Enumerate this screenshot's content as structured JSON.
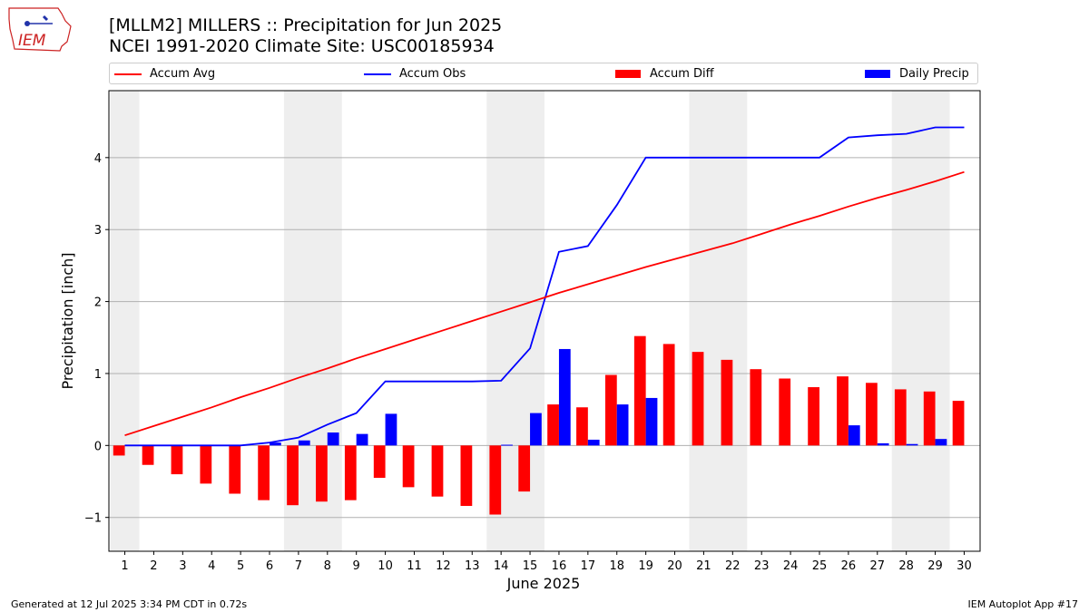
{
  "logo": {
    "text": "IEM"
  },
  "chart_data": {
    "type": "bar",
    "title": "[MLLM2] MILLERS :: Precipitation for Jun 2025",
    "subtitle": "NCEI 1991-2020 Climate Site: USC00185934",
    "xlabel": "June 2025",
    "ylabel": "Precipitation [inch]",
    "ylim": [
      -1.47,
      4.93
    ],
    "yticks": [
      -1,
      0,
      1,
      2,
      3,
      4
    ],
    "ytick_labels": [
      "−1",
      "0",
      "1",
      "2",
      "3",
      "4"
    ],
    "x": [
      1,
      2,
      3,
      4,
      5,
      6,
      7,
      8,
      9,
      10,
      11,
      12,
      13,
      14,
      15,
      16,
      17,
      18,
      19,
      20,
      21,
      22,
      23,
      24,
      25,
      26,
      27,
      28,
      29,
      30
    ],
    "weekend_shading": [
      [
        0.5,
        1.5
      ],
      [
        6.5,
        8.5
      ],
      [
        13.5,
        15.5
      ],
      [
        20.5,
        22.5
      ],
      [
        27.5,
        29.5
      ]
    ],
    "grid": "horizontal",
    "legend_placement": "top",
    "series": [
      {
        "name": "Accum Avg",
        "kind": "line",
        "color": "#ff0000",
        "values": [
          0.14,
          0.27,
          0.4,
          0.53,
          0.67,
          0.8,
          0.94,
          1.07,
          1.21,
          1.34,
          1.47,
          1.6,
          1.73,
          1.86,
          1.99,
          2.12,
          2.24,
          2.36,
          2.48,
          2.59,
          2.7,
          2.81,
          2.94,
          3.07,
          3.19,
          3.32,
          3.44,
          3.55,
          3.67,
          3.8
        ]
      },
      {
        "name": "Accum Obs",
        "kind": "line",
        "color": "#0000ff",
        "values": [
          0,
          0,
          0,
          0,
          0,
          0.04,
          0.11,
          0.29,
          0.45,
          0.89,
          0.89,
          0.89,
          0.89,
          0.9,
          1.35,
          2.69,
          2.77,
          3.34,
          4.0,
          4.0,
          4.0,
          4.0,
          4.0,
          4.0,
          4.0,
          4.28,
          4.31,
          4.33,
          4.42,
          4.42
        ]
      },
      {
        "name": "Accum Diff",
        "kind": "bar",
        "color": "#ff0000",
        "values": [
          -0.14,
          -0.27,
          -0.4,
          -0.53,
          -0.67,
          -0.76,
          -0.83,
          -0.78,
          -0.76,
          -0.45,
          -0.58,
          -0.71,
          -0.84,
          -0.96,
          -0.64,
          0.57,
          0.53,
          0.98,
          1.52,
          1.41,
          1.3,
          1.19,
          1.06,
          0.93,
          0.81,
          0.96,
          0.87,
          0.78,
          0.75,
          0.62
        ]
      },
      {
        "name": "Daily Precip",
        "kind": "bar",
        "color": "#0000ff",
        "values": [
          0,
          0,
          0,
          0,
          0,
          0.04,
          0.07,
          0.18,
          0.16,
          0.44,
          0,
          0,
          0,
          0.01,
          0.45,
          1.34,
          0.08,
          0.57,
          0.66,
          0,
          0,
          0,
          0,
          0,
          0,
          0.28,
          0.03,
          0.02,
          0.09,
          0
        ]
      }
    ]
  },
  "footer": {
    "left": "Generated at 12 Jul 2025 3:34 PM CDT in 0.72s",
    "right": "IEM Autoplot App #17"
  }
}
